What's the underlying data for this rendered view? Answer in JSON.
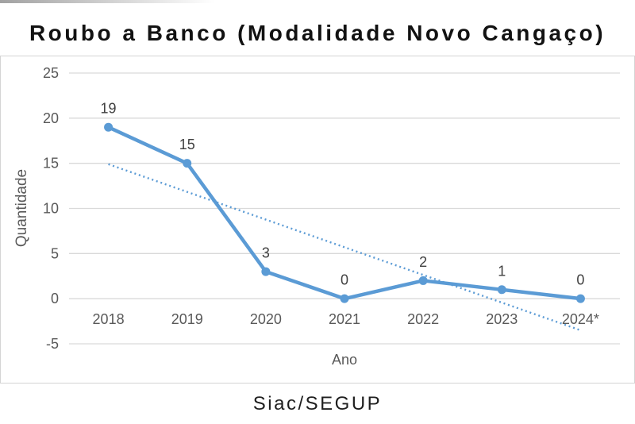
{
  "page": {
    "title": "Roubo a Banco (Modalidade Novo Cangaço)",
    "source": "Siac/SEGUP"
  },
  "chart_data": {
    "type": "line",
    "title": "Roubo a Banco (Modalidade Novo Cangaço)",
    "categories": [
      "2018",
      "2019",
      "2020",
      "2021",
      "2022",
      "2023",
      "2024*"
    ],
    "series": [
      {
        "name": "Quantidade",
        "values": [
          19,
          15,
          3,
          0,
          2,
          1,
          0
        ]
      }
    ],
    "xlabel": "Ano",
    "ylabel": "Quantidade",
    "ylim": [
      -5,
      25
    ],
    "yticks": [
      25,
      20,
      15,
      10,
      5,
      0,
      -5
    ],
    "grid": "horizontal-only",
    "legend": "none",
    "data_labels_shown": true,
    "trendline": {
      "type": "linear",
      "style": "dotted",
      "start_value": 14.9,
      "end_value": -3.5
    },
    "source": "Siac/SEGUP",
    "colors": {
      "series": "#5b9bd5",
      "trendline": "#5b9bd5",
      "gridline": "#d9d9d9",
      "frame_border": "#d4d4d4",
      "axis_text": "#595959",
      "data_label": "#404040",
      "title_text": "#121212",
      "source_text": "#1f1f1f"
    }
  }
}
